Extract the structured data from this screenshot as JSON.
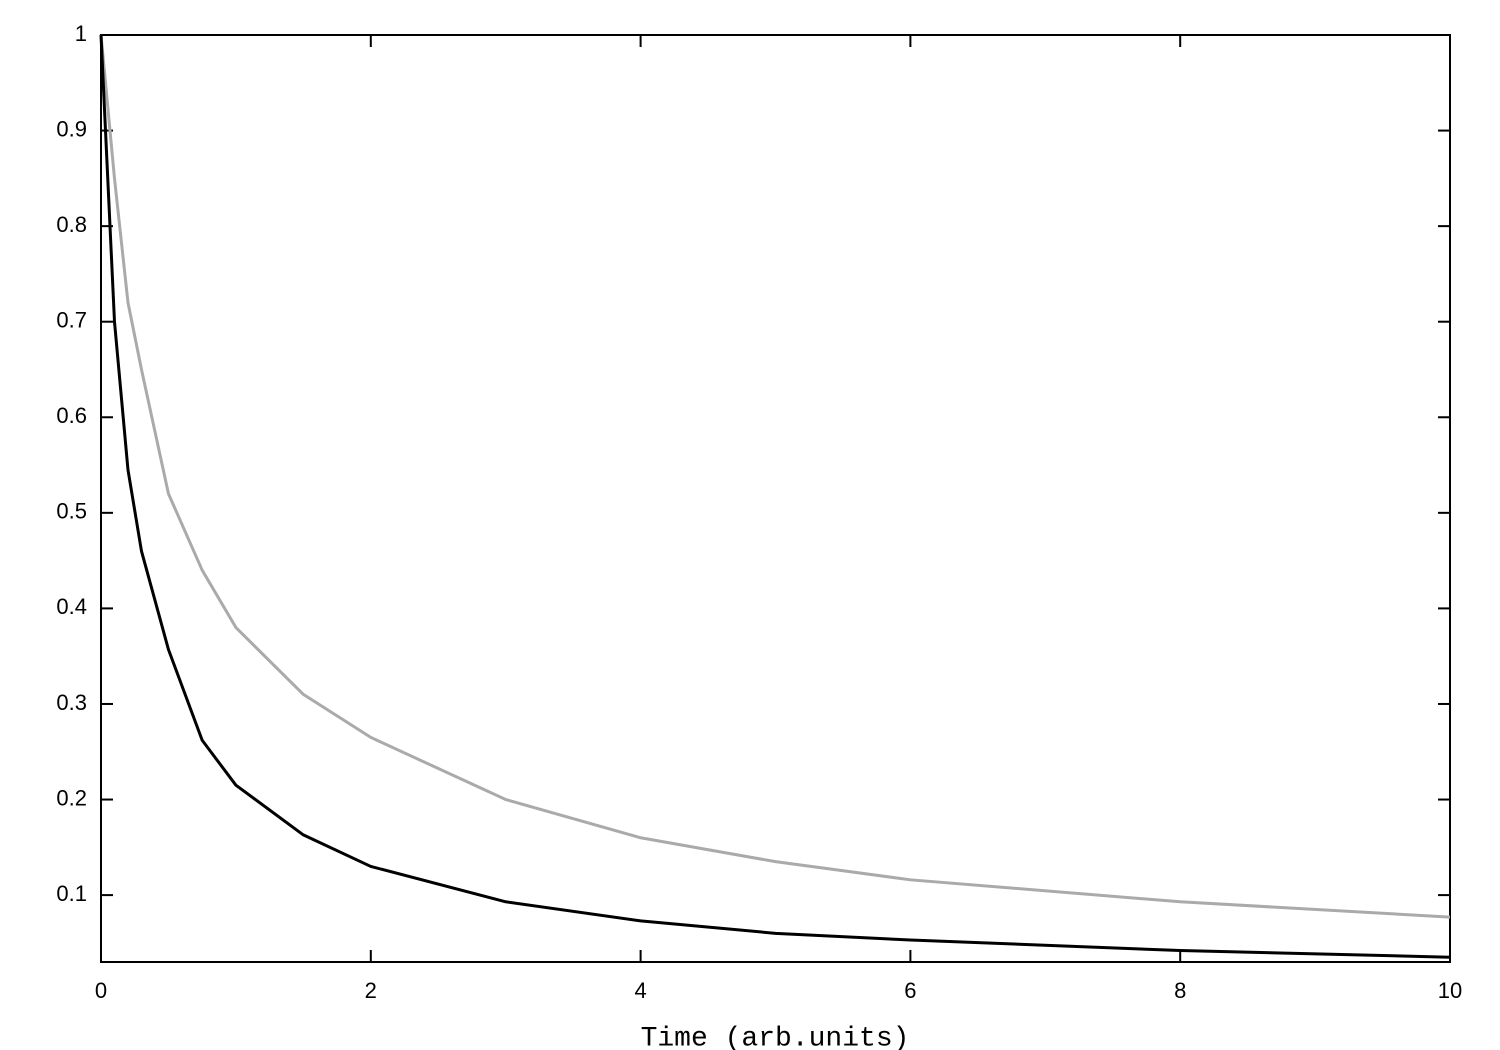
{
  "chart_data": {
    "type": "line",
    "x_label": "Time (arb.units)",
    "x": [
      0,
      0.1,
      0.2,
      0.3,
      0.5,
      0.75,
      1,
      1.5,
      2,
      3,
      4,
      5,
      6,
      8,
      10
    ],
    "series": [
      {
        "color": "#aaaaaa",
        "values": [
          1,
          0.85,
          0.72,
          0.65,
          0.52,
          0.44,
          0.38,
          0.31,
          0.265,
          0.2,
          0.16,
          0.135,
          0.116,
          0.093,
          0.077
        ]
      },
      {
        "color": "#000000",
        "values": [
          1,
          0.7,
          0.545,
          0.46,
          0.357,
          0.262,
          0.215,
          0.163,
          0.13,
          0.093,
          0.073,
          0.06,
          0.053,
          0.042,
          0.035
        ]
      }
    ],
    "xlim": [
      0,
      10
    ],
    "xticks": [
      0,
      2,
      4,
      6,
      8,
      10
    ],
    "ylim": [
      0.03,
      1
    ],
    "yticks": [
      0.1,
      0.2,
      0.3,
      0.4,
      0.5,
      0.6,
      0.7,
      0.8,
      0.9,
      1
    ],
    "grid": false
  }
}
